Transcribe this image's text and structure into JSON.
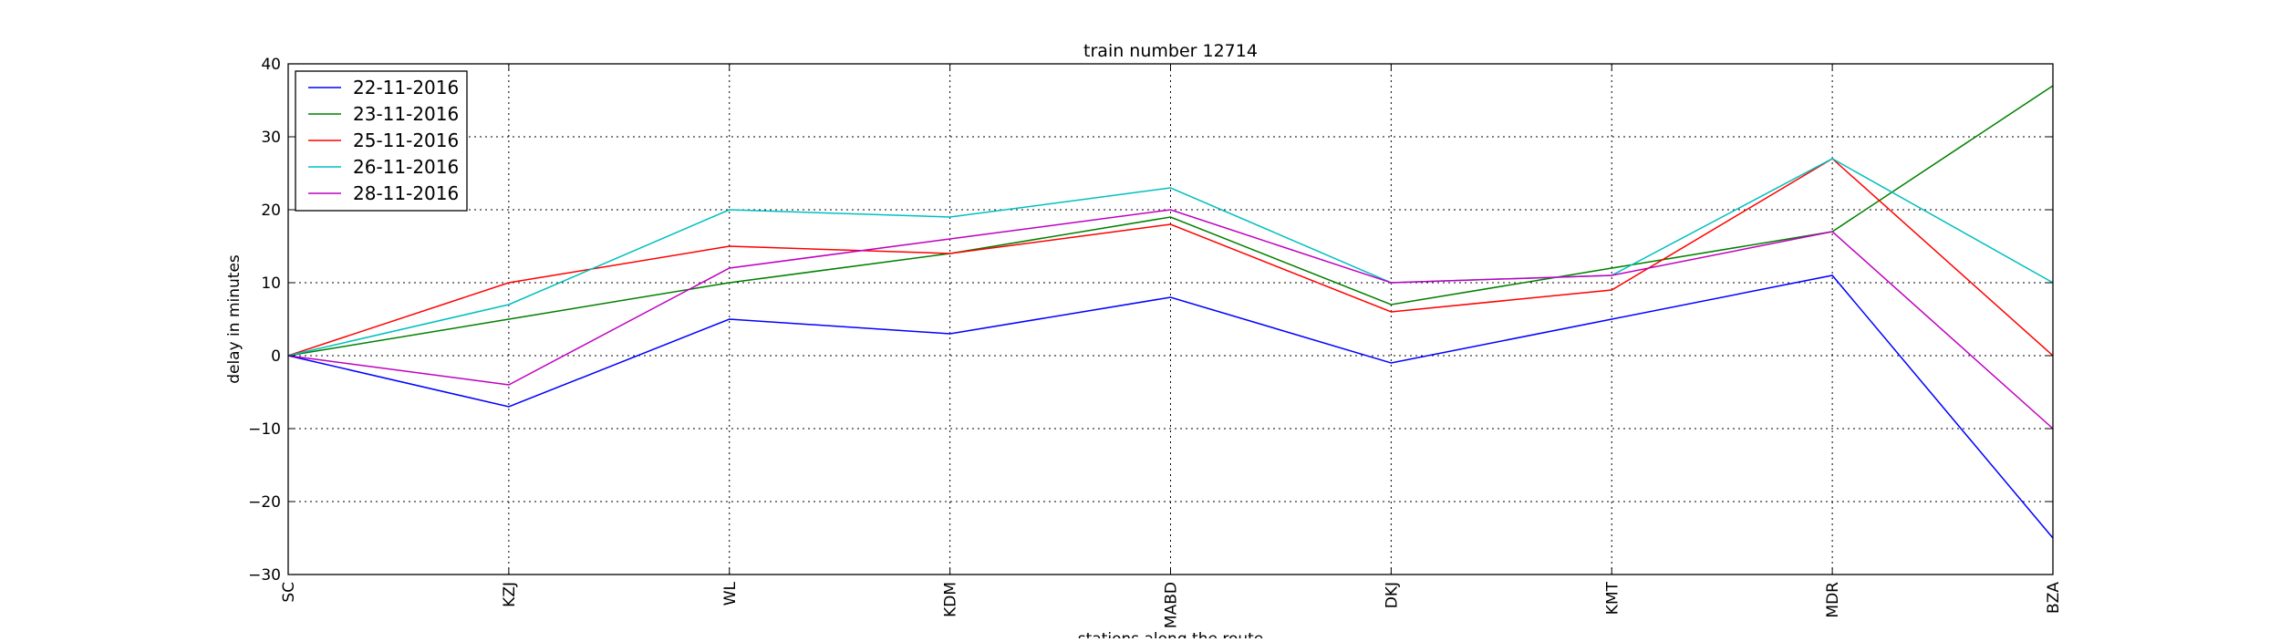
{
  "chart_data": {
    "type": "line",
    "title": "train number 12714",
    "xlabel": "stations along the route",
    "ylabel": "delay in minutes",
    "categories": [
      "SC",
      "KZJ",
      "WL",
      "KDM",
      "MABD",
      "DKJ",
      "KMT",
      "MDR",
      "BZA"
    ],
    "ylim": [
      -30,
      40
    ],
    "yticks": [
      -30,
      -20,
      -10,
      0,
      10,
      20,
      30,
      40
    ],
    "grid": true,
    "grid_style": "dotted",
    "legend_position": "top-left",
    "series": [
      {
        "name": "22-11-2016",
        "color": "#0000ff",
        "values": [
          0,
          -7,
          5,
          3,
          8,
          -1,
          5,
          11,
          -25
        ]
      },
      {
        "name": "23-11-2016",
        "color": "#008000",
        "values": [
          0,
          5,
          10,
          14,
          19,
          7,
          12,
          17,
          37
        ]
      },
      {
        "name": "25-11-2016",
        "color": "#ff0000",
        "values": [
          0,
          10,
          15,
          14,
          18,
          6,
          9,
          27,
          0
        ]
      },
      {
        "name": "26-11-2016",
        "color": "#00bfbf",
        "values": [
          0,
          7,
          20,
          19,
          23,
          10,
          11,
          27,
          10
        ]
      },
      {
        "name": "28-11-2016",
        "color": "#bf00bf",
        "values": [
          0,
          -4,
          12,
          16,
          20,
          10,
          11,
          17,
          -10
        ]
      }
    ]
  }
}
